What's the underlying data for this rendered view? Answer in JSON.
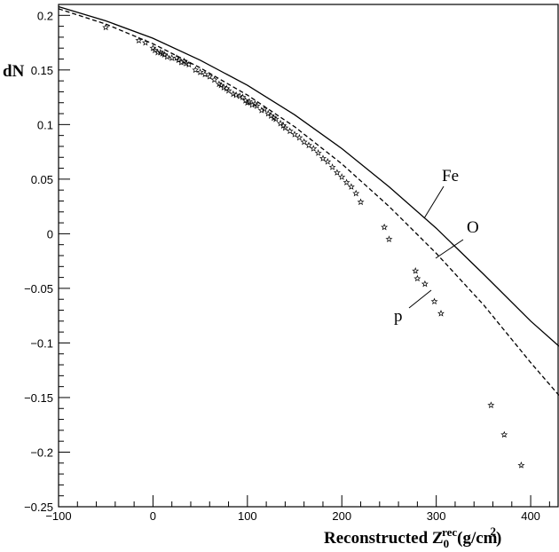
{
  "chart_data": {
    "type": "scatter",
    "ylabel": "dN",
    "xlabel": {
      "main": "Reconstructed Z",
      "sub": "0",
      "sup": "rec",
      "paren_open": "(g/cm",
      "unit_sup": "2",
      "paren_close": ")"
    },
    "xlim": [
      -100,
      430
    ],
    "ylim": [
      -0.25,
      0.21
    ],
    "xticks": [
      -100,
      0,
      100,
      200,
      300,
      400
    ],
    "xtick_labels": [
      "−100",
      "0",
      "100",
      "200",
      "300",
      "400"
    ],
    "yticks": [
      0.2,
      0.15,
      0.1,
      0.05,
      0,
      -0.05,
      -0.1,
      -0.15,
      -0.2,
      -0.25
    ],
    "ytick_labels": [
      "0.2",
      "0.15",
      "0.1",
      "0.05",
      "0",
      "−0.05",
      "−0.1",
      "−0.15",
      "−0.2",
      "−0.25"
    ],
    "grid": false,
    "series": [
      {
        "name": "Fe",
        "style": "solid",
        "color": "#000000",
        "x": [
          -100,
          -50,
          0,
          50,
          100,
          150,
          200,
          250,
          300,
          350,
          400,
          430
        ],
        "y": [
          0.208,
          0.195,
          0.179,
          0.159,
          0.136,
          0.109,
          0.078,
          0.043,
          0.005,
          -0.037,
          -0.08,
          -0.103
        ]
      },
      {
        "name": "O",
        "style": "dashed",
        "color": "#000000",
        "x": [
          -100,
          -50,
          0,
          50,
          100,
          150,
          200,
          250,
          300,
          350,
          400,
          430
        ],
        "y": [
          0.206,
          0.192,
          0.174,
          0.152,
          0.127,
          0.098,
          0.064,
          0.025,
          -0.018,
          -0.065,
          -0.118,
          -0.148
        ]
      },
      {
        "name": "p",
        "style": "markers",
        "marker": "star",
        "color": "#000000",
        "x": [
          -50,
          -15,
          -8,
          0,
          2,
          5,
          8,
          10,
          12,
          15,
          20,
          25,
          27,
          30,
          33,
          35,
          38,
          45,
          50,
          55,
          60,
          65,
          70,
          72,
          75,
          78,
          80,
          85,
          88,
          92,
          95,
          98,
          100,
          102,
          105,
          108,
          110,
          115,
          118,
          122,
          125,
          128,
          130,
          135,
          138,
          140,
          145,
          150,
          155,
          160,
          165,
          170,
          175,
          180,
          185,
          190,
          195,
          200,
          205,
          210,
          215,
          220,
          245,
          250,
          278,
          280,
          288,
          298,
          305,
          358,
          372,
          390
        ],
        "y": [
          0.189,
          0.177,
          0.175,
          0.17,
          0.168,
          0.166,
          0.166,
          0.165,
          0.164,
          0.162,
          0.161,
          0.161,
          0.159,
          0.157,
          0.158,
          0.156,
          0.155,
          0.15,
          0.148,
          0.146,
          0.144,
          0.141,
          0.137,
          0.136,
          0.134,
          0.133,
          0.131,
          0.128,
          0.127,
          0.126,
          0.125,
          0.122,
          0.12,
          0.121,
          0.118,
          0.119,
          0.117,
          0.113,
          0.114,
          0.11,
          0.108,
          0.106,
          0.105,
          0.101,
          0.099,
          0.097,
          0.094,
          0.091,
          0.088,
          0.084,
          0.081,
          0.078,
          0.074,
          0.069,
          0.066,
          0.061,
          0.056,
          0.052,
          0.047,
          0.043,
          0.037,
          0.029,
          0.006,
          -0.005,
          -0.034,
          -0.041,
          -0.046,
          -0.062,
          -0.073,
          -0.157,
          -0.184,
          -0.212
        ]
      }
    ]
  }
}
